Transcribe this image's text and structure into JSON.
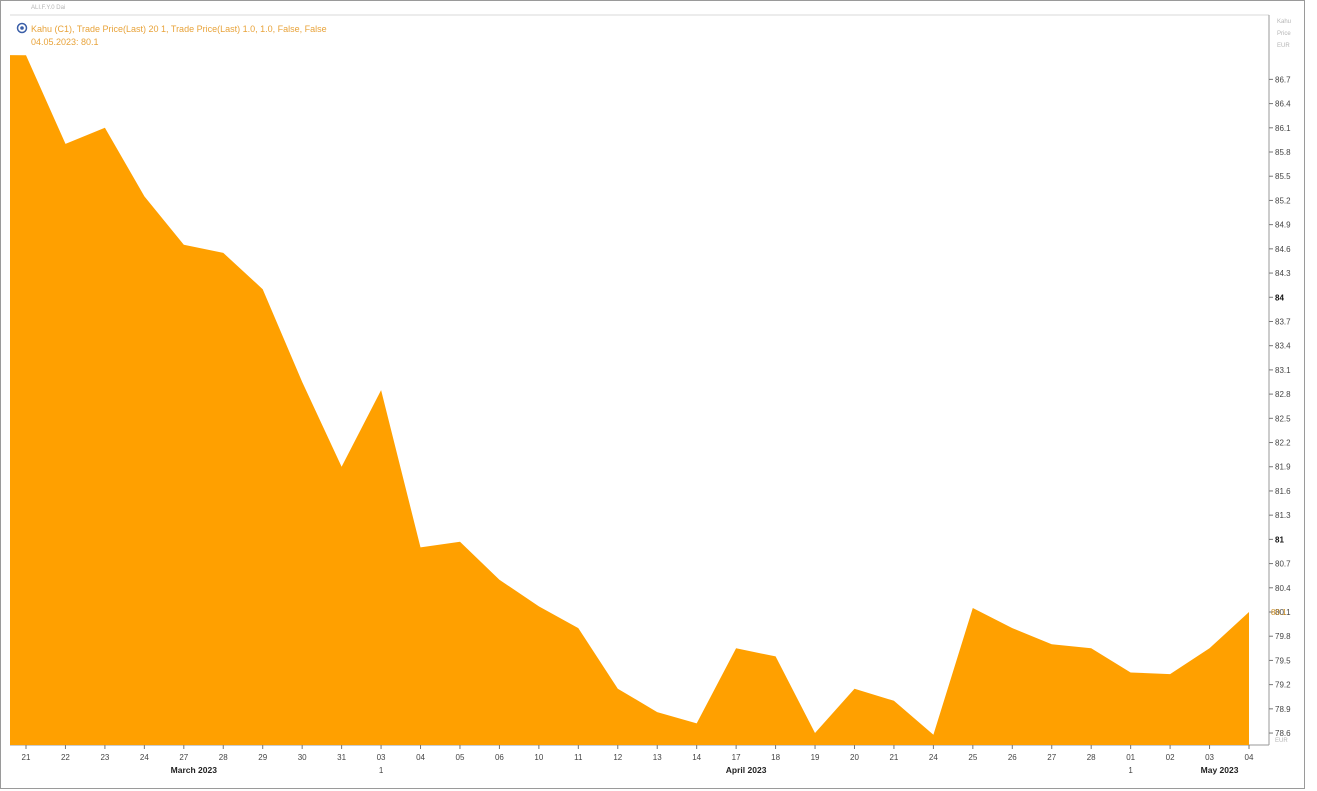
{
  "header": {
    "left_caption": "ALI.F.Y.0  Dai",
    "right_caption": "",
    "legend_main": "Kahu (C1), Trade Price(Last) 20 1, Trade Price(Last) 1.0, 1.0, False, False",
    "legend_value": "04.05.2023: 80.1"
  },
  "colors": {
    "area_fill": "#FFA000",
    "legend_text": "#E8A33A",
    "frame": "#9A9A9A"
  },
  "chart_data": {
    "type": "area",
    "x": [
      "2023-03-21",
      "2023-03-22",
      "2023-03-23",
      "2023-03-24",
      "2023-03-27",
      "2023-03-28",
      "2023-03-29",
      "2023-03-30",
      "2023-03-31",
      "2023-04-03",
      "2023-04-04",
      "2023-04-05",
      "2023-04-06",
      "2023-04-10",
      "2023-04-11",
      "2023-04-12",
      "2023-04-13",
      "2023-04-14",
      "2023-04-17",
      "2023-04-18",
      "2023-04-19",
      "2023-04-20",
      "2023-04-21",
      "2023-04-24",
      "2023-04-25",
      "2023-04-26",
      "2023-04-27",
      "2023-04-28",
      "2023-05-01",
      "2023-05-02",
      "2023-05-03",
      "2023-05-04"
    ],
    "x_tick_labels": [
      "21",
      "22",
      "23",
      "24",
      "27",
      "28",
      "29",
      "30",
      "31",
      "03",
      "04",
      "05",
      "06",
      "10",
      "11",
      "12",
      "13",
      "14",
      "17",
      "18",
      "19",
      "20",
      "21",
      "24",
      "25",
      "26",
      "27",
      "28",
      "01",
      "02",
      "03",
      "04"
    ],
    "month_labels": [
      {
        "text": "March 2023",
        "at_index": 4
      },
      {
        "text": "April 2023",
        "at_index": 18
      },
      {
        "text": "May 2023",
        "at_index": 30
      }
    ],
    "quarter_marks": [
      {
        "text": "1",
        "at_index": 9
      },
      {
        "text": "1",
        "at_index": 28
      }
    ],
    "series": [
      {
        "values": [
          87.0,
          85.9,
          86.1,
          85.25,
          84.65,
          84.55,
          84.1,
          82.95,
          81.9,
          82.85,
          80.9,
          80.97,
          80.5,
          80.17,
          79.9,
          79.15,
          78.86,
          78.72,
          79.65,
          79.55,
          78.6,
          79.15,
          79.0,
          78.58,
          80.15,
          79.9,
          79.7,
          79.65,
          79.35,
          79.33,
          79.65,
          80.1
        ]
      }
    ],
    "y_ticks": [
      "86.7",
      "86.4",
      "86.1",
      "85.8",
      "85.5",
      "85.2",
      "84.9",
      "84.6",
      "84.3",
      "84",
      "83.7",
      "83.4",
      "83.1",
      "82.8",
      "82.5",
      "82.2",
      "81.9",
      "81.6",
      "81.3",
      "81",
      "80.7",
      "80.4",
      "80.1",
      "79.8",
      "79.5",
      "79.2",
      "78.9",
      "78.6"
    ],
    "y_bold_ticks": [
      "84",
      "81"
    ],
    "y_top_extra": [
      "Kahu",
      "Price",
      "EUR"
    ],
    "ylim": [
      78.35,
      87.35
    ],
    "current_value_label": "80.1",
    "title": "",
    "xlabel": "",
    "ylabel": "",
    "grid": false,
    "legend_position": "top-left"
  }
}
